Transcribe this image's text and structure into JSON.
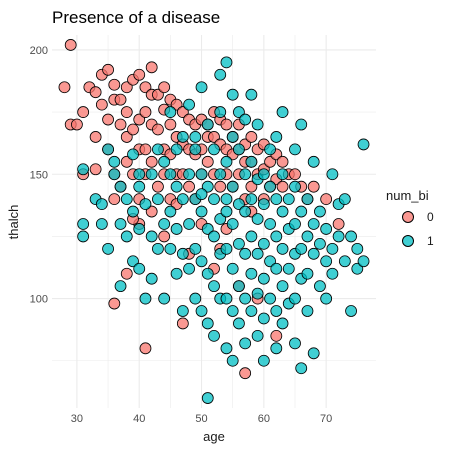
{
  "chart_data": {
    "type": "scatter",
    "title": "Presence of a disease",
    "xlabel": "age",
    "ylabel": "thalch",
    "xlim": [
      26,
      78
    ],
    "ylim": [
      56,
      206
    ],
    "xticks": [
      30,
      40,
      50,
      60,
      70
    ],
    "yticks": [
      100,
      150,
      200
    ],
    "grid": true,
    "legend": {
      "title": "num_bi",
      "placement": "right"
    },
    "series": [
      {
        "name": "0",
        "color": "#F8766D",
        "points": [
          [
            29,
            202
          ],
          [
            28,
            185
          ],
          [
            29,
            170
          ],
          [
            30,
            170
          ],
          [
            31,
            175
          ],
          [
            32,
            185
          ],
          [
            33,
            183
          ],
          [
            33,
            165
          ],
          [
            34,
            190
          ],
          [
            34,
            178
          ],
          [
            35,
            192
          ],
          [
            35,
            172
          ],
          [
            35,
            160
          ],
          [
            36,
            186
          ],
          [
            36,
            150
          ],
          [
            36,
            180
          ],
          [
            37,
            180
          ],
          [
            37,
            170
          ],
          [
            37,
            145
          ],
          [
            38,
            185
          ],
          [
            38,
            175
          ],
          [
            38,
            165
          ],
          [
            38,
            155
          ],
          [
            39,
            188
          ],
          [
            39,
            168
          ],
          [
            39,
            150
          ],
          [
            40,
            190
          ],
          [
            40,
            172
          ],
          [
            40,
            160
          ],
          [
            40,
            140
          ],
          [
            41,
            185
          ],
          [
            41,
            175
          ],
          [
            41,
            160
          ],
          [
            41,
            150
          ],
          [
            42,
            193
          ],
          [
            42,
            182
          ],
          [
            42,
            170
          ],
          [
            42,
            155
          ],
          [
            43,
            182
          ],
          [
            43,
            168
          ],
          [
            43,
            145
          ],
          [
            44,
            185
          ],
          [
            44,
            176
          ],
          [
            44,
            160
          ],
          [
            44,
            150
          ],
          [
            45,
            180
          ],
          [
            45,
            170
          ],
          [
            45,
            158
          ],
          [
            45,
            140
          ],
          [
            46,
            178
          ],
          [
            46,
            165
          ],
          [
            46,
            150
          ],
          [
            47,
            175
          ],
          [
            47,
            162
          ],
          [
            47,
            150
          ],
          [
            48,
            172
          ],
          [
            48,
            160
          ],
          [
            48,
            145
          ],
          [
            49,
            170
          ],
          [
            49,
            158
          ],
          [
            49,
            140
          ],
          [
            50,
            172
          ],
          [
            50,
            160
          ],
          [
            50,
            150
          ],
          [
            51,
            170
          ],
          [
            51,
            165
          ],
          [
            51,
            155
          ],
          [
            52,
            175
          ],
          [
            52,
            165
          ],
          [
            52,
            150
          ],
          [
            53,
            172
          ],
          [
            53,
            162
          ],
          [
            53,
            145
          ],
          [
            54,
            170
          ],
          [
            54,
            160
          ],
          [
            54,
            150
          ],
          [
            55,
            165
          ],
          [
            55,
            158
          ],
          [
            55,
            145
          ],
          [
            56,
            170
          ],
          [
            56,
            160
          ],
          [
            56,
            150
          ],
          [
            57,
            162
          ],
          [
            57,
            155
          ],
          [
            57,
            140
          ],
          [
            58,
            165
          ],
          [
            58,
            155
          ],
          [
            58,
            145
          ],
          [
            59,
            160
          ],
          [
            59,
            150
          ],
          [
            60,
            162
          ],
          [
            60,
            152
          ],
          [
            60,
            140
          ],
          [
            61,
            155
          ],
          [
            61,
            145
          ],
          [
            62,
            158
          ],
          [
            62,
            148
          ],
          [
            63,
            155
          ],
          [
            63,
            145
          ],
          [
            64,
            150
          ],
          [
            65,
            150
          ],
          [
            66,
            145
          ],
          [
            67,
            140
          ],
          [
            68,
            145
          ],
          [
            70,
            140
          ],
          [
            72,
            130
          ],
          [
            36,
            98
          ],
          [
            38,
            110
          ],
          [
            41,
            80
          ],
          [
            47,
            90
          ],
          [
            53,
            120
          ],
          [
            57,
            70
          ],
          [
            62,
            85
          ],
          [
            31,
            150
          ],
          [
            33,
            152
          ],
          [
            36,
            140
          ],
          [
            40,
            130
          ],
          [
            44,
            125
          ],
          [
            48,
            118
          ],
          [
            52,
            112
          ],
          [
            56,
            105
          ],
          [
            59,
            100
          ],
          [
            46,
            138
          ],
          [
            50,
            130
          ],
          [
            54,
            128
          ],
          [
            58,
            135
          ],
          [
            42,
            135
          ],
          [
            39,
            132
          ]
        ]
      },
      {
        "name": "1",
        "color": "#00BFC4",
        "points": [
          [
            31,
            152
          ],
          [
            31,
            130
          ],
          [
            31,
            125
          ],
          [
            33,
            140
          ],
          [
            34,
            130
          ],
          [
            35,
            120
          ],
          [
            35,
            160
          ],
          [
            36,
            155
          ],
          [
            37,
            130
          ],
          [
            37,
            105
          ],
          [
            38,
            140
          ],
          [
            38,
            125
          ],
          [
            39,
            158
          ],
          [
            39,
            135
          ],
          [
            39,
            115
          ],
          [
            40,
            145
          ],
          [
            40,
            128
          ],
          [
            40,
            112
          ],
          [
            41,
            100
          ],
          [
            41,
            138
          ],
          [
            42,
            150
          ],
          [
            42,
            125
          ],
          [
            42,
            108
          ],
          [
            43,
            140
          ],
          [
            43,
            120
          ],
          [
            44,
            100
          ],
          [
            44,
            130
          ],
          [
            45,
            175
          ],
          [
            45,
            150
          ],
          [
            45,
            120
          ],
          [
            46,
            145
          ],
          [
            46,
            128
          ],
          [
            46,
            110
          ],
          [
            47,
            165
          ],
          [
            47,
            140
          ],
          [
            47,
            118
          ],
          [
            47,
            95
          ],
          [
            48,
            150
          ],
          [
            48,
            130
          ],
          [
            48,
            112
          ],
          [
            49,
            160
          ],
          [
            49,
            140
          ],
          [
            49,
            120
          ],
          [
            49,
            100
          ],
          [
            50,
            185
          ],
          [
            50,
            150
          ],
          [
            50,
            135
          ],
          [
            50,
            115
          ],
          [
            50,
            95
          ],
          [
            51,
            170
          ],
          [
            51,
            145
          ],
          [
            51,
            128
          ],
          [
            51,
            110
          ],
          [
            51,
            90
          ],
          [
            52,
            160
          ],
          [
            52,
            140
          ],
          [
            52,
            125
          ],
          [
            52,
            105
          ],
          [
            52,
            85
          ],
          [
            53,
            175
          ],
          [
            53,
            150
          ],
          [
            53,
            132
          ],
          [
            53,
            118
          ],
          [
            53,
            100
          ],
          [
            54,
            195
          ],
          [
            54,
            155
          ],
          [
            54,
            140
          ],
          [
            54,
            120
          ],
          [
            54,
            100
          ],
          [
            54,
            80
          ],
          [
            55,
            165
          ],
          [
            55,
            145
          ],
          [
            55,
            130
          ],
          [
            55,
            112
          ],
          [
            55,
            95
          ],
          [
            55,
            75
          ],
          [
            56,
            160
          ],
          [
            56,
            138
          ],
          [
            56,
            122
          ],
          [
            56,
            105
          ],
          [
            56,
            90
          ],
          [
            57,
            150
          ],
          [
            57,
            135
          ],
          [
            57,
            118
          ],
          [
            57,
            100
          ],
          [
            57,
            82
          ],
          [
            58,
            155
          ],
          [
            58,
            140
          ],
          [
            58,
            125
          ],
          [
            58,
            110
          ],
          [
            58,
            95
          ],
          [
            59,
            148
          ],
          [
            59,
            132
          ],
          [
            59,
            118
          ],
          [
            59,
            102
          ],
          [
            59,
            85
          ],
          [
            60,
            150
          ],
          [
            60,
            138
          ],
          [
            60,
            122
          ],
          [
            60,
            108
          ],
          [
            60,
            92
          ],
          [
            60,
            75
          ],
          [
            61,
            145
          ],
          [
            61,
            130
          ],
          [
            61,
            115
          ],
          [
            61,
            100
          ],
          [
            62,
            140
          ],
          [
            62,
            125
          ],
          [
            62,
            112
          ],
          [
            62,
            95
          ],
          [
            62,
            80
          ],
          [
            63,
            150
          ],
          [
            63,
            135
          ],
          [
            63,
            120
          ],
          [
            63,
            105
          ],
          [
            63,
            90
          ],
          [
            64,
            140
          ],
          [
            64,
            128
          ],
          [
            64,
            112
          ],
          [
            64,
            98
          ],
          [
            65,
            145
          ],
          [
            65,
            130
          ],
          [
            65,
            118
          ],
          [
            65,
            100
          ],
          [
            65,
            82
          ],
          [
            66,
            135
          ],
          [
            66,
            120
          ],
          [
            66,
            108
          ],
          [
            66,
            72
          ],
          [
            67,
            140
          ],
          [
            67,
            125
          ],
          [
            67,
            110
          ],
          [
            67,
            95
          ],
          [
            68,
            130
          ],
          [
            68,
            118
          ],
          [
            68,
            78
          ],
          [
            69,
            135
          ],
          [
            69,
            122
          ],
          [
            69,
            105
          ],
          [
            70,
            128
          ],
          [
            70,
            115
          ],
          [
            70,
            100
          ],
          [
            71,
            120
          ],
          [
            71,
            110
          ],
          [
            72,
            138
          ],
          [
            72,
            125
          ],
          [
            73,
            115
          ],
          [
            74,
            125
          ],
          [
            74,
            95
          ],
          [
            75,
            120
          ],
          [
            75,
            112
          ],
          [
            76,
            162
          ],
          [
            76,
            115
          ],
          [
            51,
            60
          ],
          [
            55,
            182
          ],
          [
            58,
            182
          ],
          [
            63,
            175
          ],
          [
            66,
            170
          ],
          [
            59,
            170
          ],
          [
            62,
            165
          ],
          [
            56,
            175
          ],
          [
            49,
            165
          ],
          [
            46,
            160
          ],
          [
            44,
            155
          ],
          [
            48,
            178
          ],
          [
            53,
            190
          ],
          [
            61,
            160
          ],
          [
            57,
            172
          ],
          [
            65,
            160
          ],
          [
            68,
            155
          ],
          [
            71,
            150
          ],
          [
            73,
            140
          ],
          [
            40,
            150
          ],
          [
            37,
            145
          ],
          [
            36,
            150
          ],
          [
            34,
            138
          ],
          [
            43,
            160
          ],
          [
            45,
            135
          ],
          [
            50,
            142
          ],
          [
            54,
            135
          ]
        ]
      }
    ]
  }
}
